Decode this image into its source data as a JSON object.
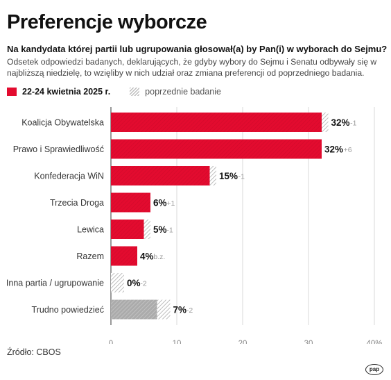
{
  "title": "Preferencje wyborcze",
  "subtitle": "Na kandydata której partii lub ugrupowania głosował(a) by Pan(i) w wyborach do Sejmu?",
  "description": "Odsetek odpowiedzi badanych, deklarujących, że gdyby wybory do Sejmu i Senatu odbywały się w najbliższą niedzielę, to wzięliby w nich udział oraz zmiana preferencji od poprzedniego badania.",
  "legend": {
    "current": "22-24 kwietnia 2025 r.",
    "previous": "poprzednie badanie"
  },
  "source": "Źródło: CBOS",
  "logo": "pap",
  "colors": {
    "current": "#e30b2f",
    "previous_hatch": "#bdbdbd",
    "grid": "#d0d0d0"
  },
  "chart_data": {
    "type": "bar",
    "orientation": "horizontal",
    "categories": [
      "Koalicja Obywatelska",
      "Prawo i Sprawiedliwość",
      "Konfederacja WiN",
      "Trzecia Droga",
      "Lewica",
      "Razem",
      "Inna partia / ugrupowanie",
      "Trudno powiedzieć"
    ],
    "series": [
      {
        "name": "22-24 kwietnia 2025 r.",
        "values": [
          32,
          32,
          15,
          6,
          5,
          4,
          0,
          7
        ]
      },
      {
        "name": "poprzednie badanie",
        "values": [
          33,
          26,
          16,
          5,
          6,
          4,
          2,
          9
        ]
      }
    ],
    "value_labels": [
      "32%",
      "32%",
      "15%",
      "6%",
      "5%",
      "4%",
      "0%",
      "7%"
    ],
    "change_labels": [
      "-1",
      "+6",
      "-1",
      "+1",
      "-1",
      "b.z.",
      "-2",
      "-2"
    ],
    "grey_categories": [
      "Trudno powiedzieć"
    ],
    "xlim": [
      0,
      40
    ],
    "xticks": [
      "0",
      "10",
      "20",
      "30",
      "40%"
    ],
    "grid": true,
    "legend_position": "top-left"
  }
}
